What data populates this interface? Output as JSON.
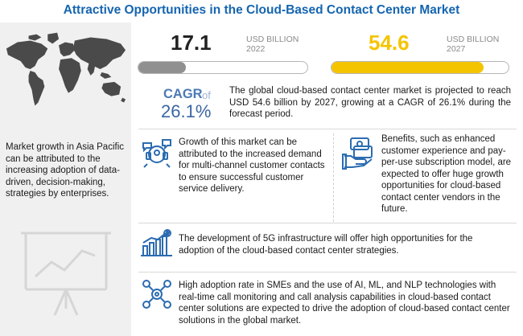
{
  "title": "Attractive Opportunities in the Cloud-Based Contact Center Market",
  "left_panel": {
    "text": "Market growth in Asia Pacific can be attributed to the increasing adoption of data-driven, decision-making, strategies by enterprises."
  },
  "stats": [
    {
      "value": "17.1",
      "unit": "USD BILLION",
      "year": "2022",
      "fill_fraction": 0.28,
      "color": "#909090"
    },
    {
      "value": "54.6",
      "unit": "USD BILLION",
      "year": "2027",
      "fill_fraction": 0.86,
      "color": "#f5c400"
    }
  ],
  "cagr": {
    "label": "CAGR",
    "of": "of",
    "value": "26.1%",
    "description": "The global cloud-based contact center market is projected to reach USD 54.6 billion by 2027, growing at a CAGR of 26.1% during the forecast period."
  },
  "insights": [
    {
      "icon": "multichannel-contact-icon",
      "text": "Growth of this market can be attributed to the increased demand for multi-channel customer contacts to ensure successful customer service delivery."
    },
    {
      "icon": "subscription-payment-icon",
      "text": "Benefits, such as enhanced customer experience and pay-per-use subscription model, are expected to offer huge growth opportunities for cloud-based contact center vendors in the future."
    },
    {
      "icon": "growth-chart-icon",
      "text": "The development of 5G infrastructure will offer high opportunities for the adoption of the cloud-based contact center strategies."
    },
    {
      "icon": "technology-network-icon",
      "text": "High adoption rate in SMEs and the use of AI, ML, and NLP technologies with real-time call monitoring and call analysis capabilities in cloud-based contact center solutions are expected to drive the adoption of cloud-based contact center solutions in the global market."
    }
  ],
  "colors": {
    "title": "#1565b0",
    "accent_yellow": "#f5c400",
    "bar_gray": "#909090",
    "cagr_blue": "#3a66a3",
    "icon_blue": "#2b6cb0",
    "panel_bg": "#f0f0f0"
  }
}
